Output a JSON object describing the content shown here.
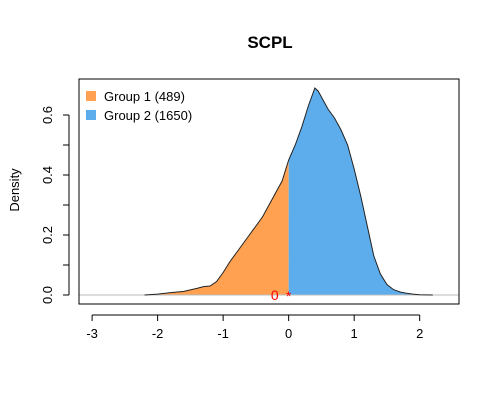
{
  "chart_data": {
    "type": "area",
    "title": "SCPL",
    "xlabel": "",
    "ylabel": "Density",
    "xlim": [
      -3.2,
      2.6
    ],
    "ylim": [
      -0.03,
      0.72
    ],
    "x_ticks": [
      -3,
      -2,
      -1,
      0,
      1,
      2
    ],
    "y_ticks": [
      0.0,
      0.2,
      0.4,
      0.6
    ],
    "y_tick_labels": [
      "0.0",
      "0.2",
      "0.4",
      "0.6"
    ],
    "grid": false,
    "legend_position": "top-left",
    "split_at": 0,
    "annotation": {
      "text": "0",
      "x": 0,
      "y": 0,
      "marker": "*",
      "color": "#ff0000"
    },
    "series": [
      {
        "name": "Group 1 (489)",
        "color": "#FFA150",
        "range": [
          -2.2,
          0
        ]
      },
      {
        "name": "Group 2 (1650)",
        "color": "#5DADEC",
        "range": [
          0,
          2.2
        ]
      }
    ],
    "density_curve": {
      "x": [
        -2.2,
        -2.0,
        -1.8,
        -1.6,
        -1.4,
        -1.3,
        -1.2,
        -1.1,
        -1.0,
        -0.9,
        -0.8,
        -0.7,
        -0.6,
        -0.5,
        -0.4,
        -0.3,
        -0.2,
        -0.1,
        0.0,
        0.1,
        0.2,
        0.3,
        0.35,
        0.4,
        0.45,
        0.5,
        0.55,
        0.6,
        0.7,
        0.8,
        0.9,
        1.0,
        1.1,
        1.2,
        1.3,
        1.4,
        1.5,
        1.6,
        1.7,
        1.8,
        1.9,
        2.0,
        2.1,
        2.2
      ],
      "y": [
        0.0,
        0.003,
        0.008,
        0.012,
        0.022,
        0.028,
        0.03,
        0.045,
        0.075,
        0.11,
        0.14,
        0.17,
        0.2,
        0.23,
        0.26,
        0.3,
        0.34,
        0.38,
        0.45,
        0.5,
        0.56,
        0.63,
        0.66,
        0.69,
        0.68,
        0.66,
        0.64,
        0.62,
        0.59,
        0.55,
        0.5,
        0.42,
        0.33,
        0.23,
        0.13,
        0.07,
        0.035,
        0.018,
        0.01,
        0.006,
        0.003,
        0.001,
        0.0005,
        0.0
      ]
    }
  }
}
